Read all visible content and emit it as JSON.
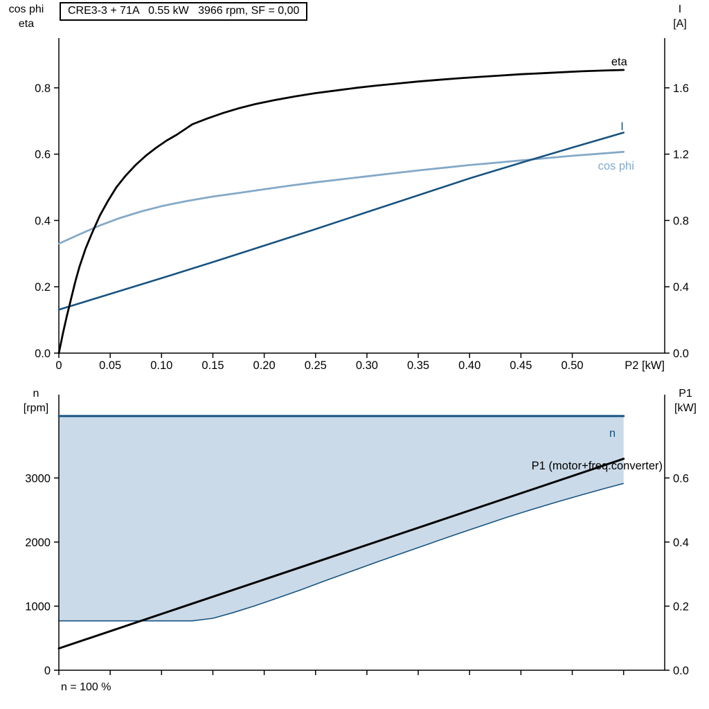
{
  "header": {
    "title": "CRE3-3 + 71A   0.55 kW   3966 rpm, SF = 0,00"
  },
  "footnote": "n = 100 %",
  "colors": {
    "black": "#000000",
    "dark_blue": "#175380",
    "light_blue": "#84a9c7",
    "fill_blue": "#cbdae8",
    "axis": "#000000"
  },
  "chart_data": [
    {
      "id": "p2-performance",
      "type": "line",
      "title": "CRE3-3 + 71A   0.55 kW   3966 rpm, SF = 0,00",
      "x_axis": {
        "label": "P2 [kW]",
        "min": 0,
        "max": 0.59,
        "ticks": [
          {
            "v": 0,
            "t": "0"
          },
          {
            "v": 0.05,
            "t": "0.05"
          },
          {
            "v": 0.1,
            "t": "0.10"
          },
          {
            "v": 0.15,
            "t": "0.15"
          },
          {
            "v": 0.2,
            "t": "0.20"
          },
          {
            "v": 0.25,
            "t": "0.25"
          },
          {
            "v": 0.3,
            "t": "0.30"
          },
          {
            "v": 0.35,
            "t": "0.35"
          },
          {
            "v": 0.4,
            "t": "0.40"
          },
          {
            "v": 0.45,
            "t": "0.45"
          },
          {
            "v": 0.5,
            "t": "0.50"
          }
        ]
      },
      "left_axis": {
        "title_lines": [
          "cos phi",
          "eta"
        ],
        "min": 0,
        "max": 0.95,
        "ticks": [
          {
            "v": 0,
            "t": "0.0"
          },
          {
            "v": 0.2,
            "t": "0.2"
          },
          {
            "v": 0.4,
            "t": "0.4"
          },
          {
            "v": 0.6,
            "t": "0.6"
          },
          {
            "v": 0.8,
            "t": "0.8"
          }
        ]
      },
      "right_axis": {
        "title_lines": [
          "I",
          "[A]"
        ],
        "min": 0,
        "max": 1.9,
        "ticks": [
          {
            "v": 0,
            "t": "0.0"
          },
          {
            "v": 0.4,
            "t": "0.4"
          },
          {
            "v": 0.8,
            "t": "0.8"
          },
          {
            "v": 1.2,
            "t": "1.2"
          },
          {
            "v": 1.6,
            "t": "1.6"
          }
        ]
      },
      "series": [
        {
          "name": "cos-phi",
          "axis": "left",
          "color": "light_blue",
          "width": 2.8,
          "points": [
            [
              0,
              0.33
            ],
            [
              0.02,
              0.358
            ],
            [
              0.04,
              0.385
            ],
            [
              0.06,
              0.408
            ],
            [
              0.08,
              0.427
            ],
            [
              0.1,
              0.443
            ],
            [
              0.125,
              0.459
            ],
            [
              0.15,
              0.472
            ],
            [
              0.175,
              0.483
            ],
            [
              0.2,
              0.494
            ],
            [
              0.225,
              0.505
            ],
            [
              0.25,
              0.515
            ],
            [
              0.275,
              0.524
            ],
            [
              0.3,
              0.533
            ],
            [
              0.325,
              0.542
            ],
            [
              0.35,
              0.551
            ],
            [
              0.375,
              0.559
            ],
            [
              0.4,
              0.567
            ],
            [
              0.425,
              0.574
            ],
            [
              0.45,
              0.581
            ],
            [
              0.475,
              0.588
            ],
            [
              0.5,
              0.595
            ],
            [
              0.525,
              0.601
            ],
            [
              0.55,
              0.607
            ]
          ]
        },
        {
          "name": "current",
          "axis": "right",
          "color": "dark_blue",
          "width": 2.6,
          "points": [
            [
              0,
              0.262
            ],
            [
              0.05,
              0.357
            ],
            [
              0.1,
              0.452
            ],
            [
              0.15,
              0.549
            ],
            [
              0.2,
              0.648
            ],
            [
              0.25,
              0.748
            ],
            [
              0.3,
              0.85
            ],
            [
              0.35,
              0.952
            ],
            [
              0.4,
              1.054
            ],
            [
              0.45,
              1.148
            ],
            [
              0.5,
              1.24
            ],
            [
              0.55,
              1.33
            ]
          ]
        },
        {
          "name": "eta",
          "axis": "left",
          "color": "black",
          "width": 2.8,
          "points": [
            [
              0,
              0
            ],
            [
              0.004,
              0.06
            ],
            [
              0.008,
              0.115
            ],
            [
              0.012,
              0.165
            ],
            [
              0.016,
              0.215
            ],
            [
              0.02,
              0.26
            ],
            [
              0.026,
              0.315
            ],
            [
              0.032,
              0.36
            ],
            [
              0.04,
              0.415
            ],
            [
              0.048,
              0.46
            ],
            [
              0.056,
              0.5
            ],
            [
              0.065,
              0.535
            ],
            [
              0.075,
              0.568
            ],
            [
              0.085,
              0.596
            ],
            [
              0.095,
              0.62
            ],
            [
              0.105,
              0.641
            ],
            [
              0.115,
              0.659
            ],
            [
              0.13,
              0.69
            ],
            [
              0.145,
              0.708
            ],
            [
              0.16,
              0.724
            ],
            [
              0.175,
              0.738
            ],
            [
              0.19,
              0.75
            ],
            [
              0.21,
              0.763
            ],
            [
              0.23,
              0.774
            ],
            [
              0.25,
              0.784
            ],
            [
              0.27,
              0.792
            ],
            [
              0.29,
              0.8
            ],
            [
              0.31,
              0.807
            ],
            [
              0.33,
              0.813
            ],
            [
              0.35,
              0.819
            ],
            [
              0.37,
              0.824
            ],
            [
              0.39,
              0.829
            ],
            [
              0.41,
              0.833
            ],
            [
              0.43,
              0.837
            ],
            [
              0.45,
              0.841
            ],
            [
              0.47,
              0.844
            ],
            [
              0.49,
              0.847
            ],
            [
              0.51,
              0.85
            ],
            [
              0.53,
              0.852
            ],
            [
              0.55,
              0.854
            ]
          ]
        }
      ],
      "annotations": [
        {
          "name": "eta",
          "text": "eta",
          "axis": "left",
          "x": 0.538,
          "y": 0.868,
          "anchor": "start",
          "color": "black"
        },
        {
          "name": "current",
          "text": "I",
          "axis": "left",
          "x": 0.547,
          "y": 0.672,
          "anchor": "start",
          "color": "dark_blue"
        },
        {
          "name": "cos-phi",
          "text": "cos phi",
          "axis": "left",
          "x": 0.525,
          "y": 0.553,
          "anchor": "start",
          "color": "light_blue"
        }
      ]
    },
    {
      "id": "speed-power",
      "type": "line",
      "x_axis": {
        "label": "",
        "min": 0,
        "max": 0.59,
        "ticks": [
          {
            "v": 0
          },
          {
            "v": 0.05
          },
          {
            "v": 0.1
          },
          {
            "v": 0.15
          },
          {
            "v": 0.2
          },
          {
            "v": 0.25
          },
          {
            "v": 0.3
          },
          {
            "v": 0.35
          },
          {
            "v": 0.4
          },
          {
            "v": 0.45
          },
          {
            "v": 0.5
          },
          {
            "v": 0.55
          }
        ]
      },
      "left_axis": {
        "title_lines": [
          "n",
          "[rpm]"
        ],
        "min": 0,
        "max": 4300,
        "ticks": [
          {
            "v": 0,
            "t": "0"
          },
          {
            "v": 1000,
            "t": "1000"
          },
          {
            "v": 2000,
            "t": "2000"
          },
          {
            "v": 3000,
            "t": "3000"
          }
        ]
      },
      "right_axis": {
        "title_lines": [
          "P1",
          "[kW]"
        ],
        "min": 0,
        "max": 0.86,
        "ticks": [
          {
            "v": 0,
            "t": "0.0"
          },
          {
            "v": 0.2,
            "t": "0.2"
          },
          {
            "v": 0.4,
            "t": "0.4"
          },
          {
            "v": 0.6,
            "t": "0.6"
          }
        ]
      },
      "band": {
        "name": "speed-range",
        "fill": "fill_blue",
        "line_color": "dark_blue",
        "upper": [
          [
            0,
            3966
          ],
          [
            0.55,
            3966
          ]
        ],
        "lower": [
          [
            0,
            770
          ],
          [
            0.13,
            770
          ],
          [
            0.15,
            810
          ],
          [
            0.17,
            900
          ],
          [
            0.19,
            1000
          ],
          [
            0.21,
            1110
          ],
          [
            0.235,
            1250
          ],
          [
            0.26,
            1400
          ],
          [
            0.285,
            1545
          ],
          [
            0.31,
            1690
          ],
          [
            0.335,
            1830
          ],
          [
            0.36,
            1970
          ],
          [
            0.385,
            2110
          ],
          [
            0.41,
            2245
          ],
          [
            0.435,
            2380
          ],
          [
            0.46,
            2505
          ],
          [
            0.485,
            2625
          ],
          [
            0.51,
            2740
          ],
          [
            0.53,
            2830
          ],
          [
            0.55,
            2915
          ]
        ]
      },
      "series": [
        {
          "name": "p1",
          "axis": "right",
          "color": "black",
          "width": 3,
          "points": [
            [
              0,
              0.068
            ],
            [
              0.55,
              0.66
            ]
          ]
        },
        {
          "name": "n",
          "axis": "left",
          "color": "dark_blue",
          "width": 3,
          "points": [
            [
              0,
              3966
            ],
            [
              0.55,
              3966
            ]
          ]
        }
      ],
      "annotations": [
        {
          "name": "n",
          "text": "n",
          "axis": "left",
          "x": 0.536,
          "y": 3640,
          "anchor": "start",
          "color": "dark_blue"
        },
        {
          "name": "p1",
          "text": "P1 (motor+freq.converter)",
          "axis": "right",
          "x": 0.588,
          "y": 0.627,
          "anchor": "end",
          "color": "black"
        }
      ]
    }
  ]
}
